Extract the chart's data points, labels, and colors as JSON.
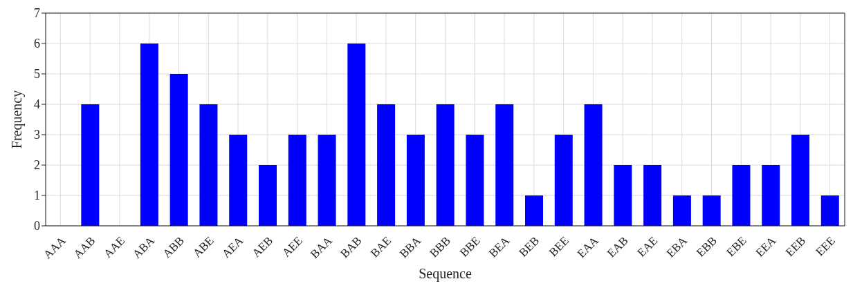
{
  "chart_data": {
    "type": "bar",
    "xlabel": "Sequence",
    "ylabel": "Frequency",
    "categories": [
      "AAA",
      "AAB",
      "AAE",
      "ABA",
      "ABB",
      "ABE",
      "AEA",
      "AEB",
      "AEE",
      "BAA",
      "BAB",
      "BAE",
      "BBA",
      "BBB",
      "BBE",
      "BEA",
      "BEB",
      "BEE",
      "EAA",
      "EAB",
      "EAE",
      "EBA",
      "EBB",
      "EBE",
      "EEA",
      "EEB",
      "EEE"
    ],
    "values": [
      0,
      4,
      0,
      6,
      5,
      4,
      3,
      2,
      3,
      3,
      6,
      4,
      3,
      4,
      3,
      4,
      1,
      3,
      4,
      2,
      2,
      1,
      1,
      2,
      2,
      3,
      1
    ],
    "color": "#0000ff",
    "ylim": [
      0,
      7
    ],
    "yticks": [
      0,
      1,
      2,
      3,
      4,
      5,
      6,
      7
    ],
    "grid": true
  }
}
